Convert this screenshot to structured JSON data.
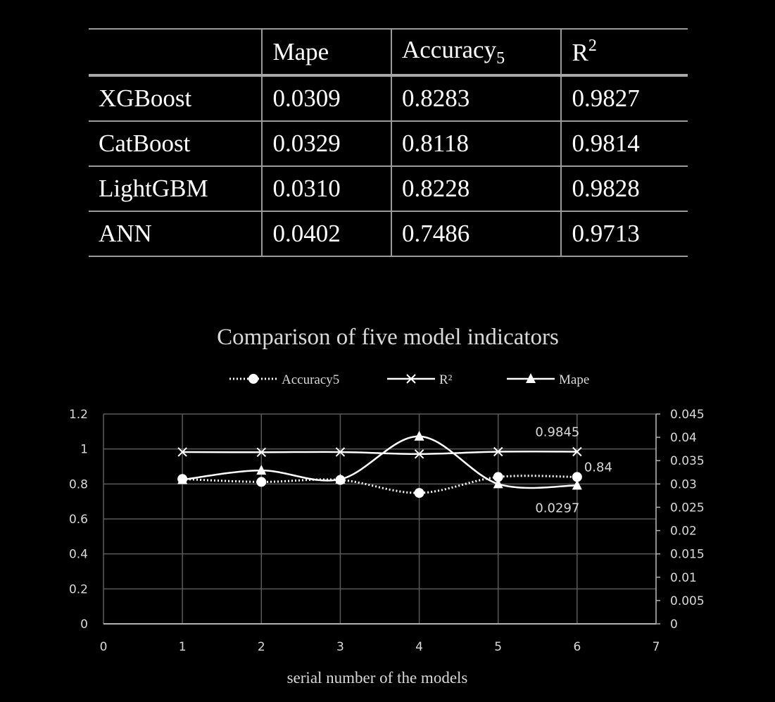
{
  "table": {
    "columns": [
      {
        "base": "",
        "sub": "",
        "sup": ""
      },
      {
        "base": "Mape",
        "sub": "",
        "sup": ""
      },
      {
        "base": "Accuracy",
        "sub": "5",
        "sup": ""
      },
      {
        "base": "R",
        "sub": "",
        "sup": "2"
      }
    ],
    "rows": [
      [
        "XGBoost",
        "0.0309",
        "0.8283",
        "0.9827"
      ],
      [
        "CatBoost",
        "0.0329",
        "0.8118",
        "0.9814"
      ],
      [
        "LightGBM",
        "0.0310",
        "0.8228",
        "0.9828"
      ],
      [
        "ANN",
        "0.0402",
        "0.7486",
        "0.9713"
      ]
    ]
  },
  "chart_data": {
    "type": "line",
    "title": "Comparison of five model indicators",
    "xlabel": "serial number of the models",
    "ylabel": "",
    "xlim": [
      0,
      7
    ],
    "ylim": [
      0,
      1.2
    ],
    "y2lim": [
      0,
      0.045
    ],
    "x_ticks": [
      "0",
      "1",
      "2",
      "3",
      "4",
      "5",
      "6",
      "7"
    ],
    "y_ticks": [
      "0",
      "0.2",
      "0.4",
      "0.6",
      "0.8",
      "1",
      "1.2"
    ],
    "y2_ticks": [
      "0",
      "0.005",
      "0.01",
      "0.015",
      "0.02",
      "0.025",
      "0.03",
      "0.035",
      "0.04",
      "0.045"
    ],
    "grid": true,
    "legend_position": "top",
    "x": [
      1,
      2,
      3,
      4,
      5,
      6
    ],
    "series": [
      {
        "name": "Accuracy5",
        "axis": "left",
        "style": "dotted",
        "marker": "circle",
        "values": [
          0.8283,
          0.8118,
          0.8228,
          0.7486,
          0.84,
          0.84
        ]
      },
      {
        "name": "R²",
        "axis": "left",
        "style": "solid",
        "marker": "x",
        "values": [
          0.9827,
          0.9814,
          0.9828,
          0.9713,
          0.9845,
          0.9845
        ]
      },
      {
        "name": "Mape",
        "axis": "right",
        "style": "solid",
        "marker": "triangle",
        "values": [
          0.0309,
          0.0329,
          0.031,
          0.0402,
          0.03,
          0.0297
        ]
      }
    ],
    "annotations": [
      {
        "text": "0.9845",
        "series": 1,
        "point": 5,
        "place": "above"
      },
      {
        "text": "0.84",
        "series": 0,
        "point": 5,
        "place": "right"
      },
      {
        "text": "0.0297",
        "series": 2,
        "point": 5,
        "place": "below"
      }
    ],
    "colors": {
      "line": "#ffffff",
      "grid": "#5a5a5a",
      "axis_text": "#d9d9d9",
      "title": "#d9d9d9"
    }
  }
}
